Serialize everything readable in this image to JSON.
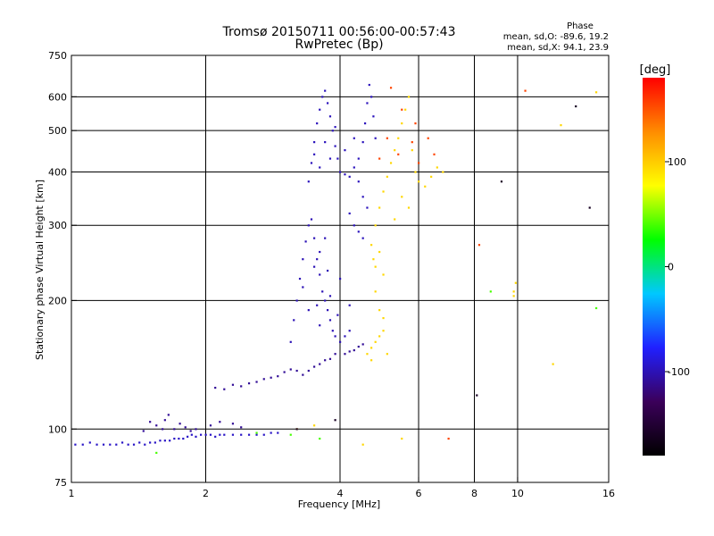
{
  "chart_data": {
    "type": "scatter",
    "title": "Tromsø 20150711 00:56:00-00:57:43",
    "subtitle": "RwPretec (Bp)",
    "xlabel": "Frequency [MHz]",
    "ylabel": "Stationary phase Virtual Height [km]",
    "x_scale": "log",
    "y_scale": "log",
    "xlim": [
      1,
      16
    ],
    "ylim": [
      75,
      750
    ],
    "x_ticks": [
      1,
      2,
      4,
      6,
      8,
      10,
      16
    ],
    "y_ticks": [
      75,
      100,
      200,
      300,
      400,
      500,
      600,
      750
    ],
    "grid": true,
    "stats": {
      "heading": "Phase",
      "line_o": "mean, sd,O: -89.6, 19.2",
      "line_x": "mean, sd,X:  94.1, 23.9"
    },
    "colorbar": {
      "label": "[deg]",
      "range": [
        -180,
        180
      ],
      "ticks": [
        100,
        0,
        -100
      ],
      "colors": [
        "#000000",
        "#3b005a",
        "#2020ff",
        "#00c8ff",
        "#00ff00",
        "#ffff00",
        "#ff8c00",
        "#ff0000"
      ]
    },
    "series": [
      {
        "phase": -95,
        "points": [
          [
            1.02,
            92
          ],
          [
            1.06,
            92
          ],
          [
            1.1,
            93
          ],
          [
            1.14,
            92
          ],
          [
            1.18,
            92
          ],
          [
            1.22,
            92
          ],
          [
            1.26,
            92
          ],
          [
            1.3,
            93
          ],
          [
            1.34,
            92
          ],
          [
            1.38,
            92
          ],
          [
            1.42,
            93
          ],
          [
            1.46,
            92
          ],
          [
            1.5,
            93
          ],
          [
            1.54,
            93
          ],
          [
            1.58,
            94
          ],
          [
            1.62,
            94
          ],
          [
            1.66,
            94
          ],
          [
            1.7,
            95
          ],
          [
            1.74,
            95
          ],
          [
            1.78,
            95
          ],
          [
            1.82,
            96
          ],
          [
            1.86,
            97
          ],
          [
            1.9,
            96
          ],
          [
            1.95,
            97
          ],
          [
            2.0,
            97
          ],
          [
            2.05,
            97
          ],
          [
            2.1,
            96
          ],
          [
            2.15,
            97
          ],
          [
            2.2,
            97
          ],
          [
            2.3,
            97
          ],
          [
            2.4,
            97
          ],
          [
            2.5,
            97
          ],
          [
            2.6,
            97
          ],
          [
            2.7,
            97
          ],
          [
            2.8,
            98
          ],
          [
            2.9,
            98
          ]
        ]
      },
      {
        "phase": -110,
        "points": [
          [
            1.45,
            99
          ],
          [
            1.5,
            104
          ],
          [
            1.55,
            102
          ],
          [
            1.6,
            100
          ],
          [
            1.62,
            105
          ],
          [
            1.65,
            108
          ],
          [
            1.7,
            100
          ],
          [
            1.75,
            103
          ],
          [
            1.8,
            101
          ],
          [
            1.85,
            99
          ],
          [
            1.9,
            100
          ],
          [
            2.05,
            102
          ],
          [
            2.15,
            104
          ],
          [
            2.3,
            103
          ],
          [
            2.4,
            101
          ],
          [
            2.1,
            125
          ],
          [
            2.2,
            124
          ],
          [
            2.3,
            127
          ],
          [
            2.4,
            126
          ],
          [
            2.5,
            128
          ],
          [
            2.6,
            129
          ],
          [
            2.7,
            131
          ],
          [
            2.8,
            132
          ],
          [
            2.9,
            133
          ],
          [
            3.0,
            136
          ],
          [
            3.1,
            138
          ],
          [
            3.2,
            137
          ],
          [
            3.3,
            134
          ],
          [
            3.4,
            137
          ],
          [
            3.5,
            140
          ],
          [
            3.6,
            142
          ],
          [
            3.7,
            145
          ],
          [
            3.8,
            146
          ],
          [
            3.9,
            150
          ],
          [
            4.1,
            150
          ],
          [
            4.2,
            152
          ],
          [
            4.3,
            153
          ],
          [
            4.4,
            156
          ],
          [
            4.5,
            158
          ]
        ]
      },
      {
        "phase": -100,
        "points": [
          [
            3.1,
            160
          ],
          [
            3.15,
            180
          ],
          [
            3.2,
            200
          ],
          [
            3.25,
            225
          ],
          [
            3.3,
            250
          ],
          [
            3.35,
            275
          ],
          [
            3.4,
            300
          ],
          [
            3.45,
            310
          ],
          [
            3.5,
            280
          ],
          [
            3.55,
            250
          ],
          [
            3.6,
            230
          ],
          [
            3.65,
            210
          ],
          [
            3.7,
            200
          ],
          [
            3.75,
            190
          ],
          [
            3.8,
            180
          ],
          [
            3.85,
            170
          ],
          [
            3.9,
            165
          ],
          [
            4.0,
            160
          ],
          [
            4.1,
            165
          ],
          [
            4.2,
            170
          ],
          [
            3.3,
            215
          ],
          [
            3.5,
            240
          ],
          [
            3.6,
            260
          ],
          [
            3.7,
            280
          ],
          [
            3.4,
            190
          ],
          [
            3.6,
            175
          ],
          [
            3.8,
            205
          ],
          [
            4.0,
            225
          ],
          [
            4.2,
            195
          ],
          [
            3.55,
            195
          ],
          [
            3.75,
            235
          ],
          [
            3.95,
            185
          ]
        ]
      },
      {
        "phase": -98,
        "points": [
          [
            3.4,
            380
          ],
          [
            3.45,
            420
          ],
          [
            3.5,
            470
          ],
          [
            3.55,
            520
          ],
          [
            3.6,
            560
          ],
          [
            3.65,
            600
          ],
          [
            3.7,
            620
          ],
          [
            3.75,
            580
          ],
          [
            3.8,
            540
          ],
          [
            3.85,
            500
          ],
          [
            3.9,
            460
          ],
          [
            3.95,
            430
          ],
          [
            4.0,
            400
          ],
          [
            3.6,
            410
          ],
          [
            3.8,
            430
          ],
          [
            4.1,
            395
          ],
          [
            4.2,
            390
          ],
          [
            4.3,
            410
          ],
          [
            4.4,
            430
          ],
          [
            4.5,
            470
          ],
          [
            4.55,
            520
          ],
          [
            4.6,
            580
          ],
          [
            4.65,
            640
          ],
          [
            4.7,
            600
          ],
          [
            4.75,
            540
          ],
          [
            4.8,
            480
          ],
          [
            4.4,
            380
          ],
          [
            4.5,
            350
          ],
          [
            4.6,
            330
          ],
          [
            4.2,
            320
          ],
          [
            4.3,
            300
          ],
          [
            4.4,
            290
          ],
          [
            4.5,
            280
          ],
          [
            3.5,
            440
          ],
          [
            3.7,
            470
          ],
          [
            3.9,
            510
          ],
          [
            4.1,
            450
          ],
          [
            4.3,
            480
          ]
        ]
      },
      {
        "phase": 95,
        "points": [
          [
            4.7,
            270
          ],
          [
            4.75,
            250
          ],
          [
            4.8,
            240
          ],
          [
            4.9,
            260
          ],
          [
            5.0,
            230
          ],
          [
            4.8,
            300
          ],
          [
            4.9,
            330
          ],
          [
            5.0,
            360
          ],
          [
            5.1,
            390
          ],
          [
            5.2,
            420
          ],
          [
            5.3,
            450
          ],
          [
            5.4,
            480
          ],
          [
            5.5,
            520
          ],
          [
            5.6,
            560
          ],
          [
            5.7,
            600
          ],
          [
            5.8,
            450
          ],
          [
            5.9,
            400
          ],
          [
            6.0,
            380
          ],
          [
            6.2,
            370
          ],
          [
            6.4,
            390
          ],
          [
            6.6,
            410
          ],
          [
            6.8,
            400
          ],
          [
            5.5,
            350
          ],
          [
            5.7,
            330
          ],
          [
            5.3,
            310
          ],
          [
            4.7,
            155
          ],
          [
            4.8,
            160
          ],
          [
            4.9,
            165
          ],
          [
            5.0,
            170
          ],
          [
            5.1,
            150
          ],
          [
            4.6,
            150
          ],
          [
            4.7,
            145
          ],
          [
            4.8,
            210
          ],
          [
            4.9,
            190
          ],
          [
            5.0,
            182
          ],
          [
            4.5,
            92
          ],
          [
            5.5,
            95
          ],
          [
            3.2,
            100
          ],
          [
            3.5,
            102
          ],
          [
            9.8,
            205
          ],
          [
            9.9,
            220
          ],
          [
            9.8,
            210
          ],
          [
            12.0,
            142
          ],
          [
            12.5,
            515
          ],
          [
            15.0,
            615
          ]
        ]
      },
      {
        "phase": 155,
        "points": [
          [
            5.2,
            630
          ],
          [
            5.5,
            560
          ],
          [
            5.8,
            470
          ],
          [
            6.0,
            420
          ],
          [
            6.3,
            480
          ],
          [
            6.5,
            440
          ],
          [
            5.4,
            440
          ],
          [
            5.9,
            520
          ],
          [
            4.9,
            430
          ],
          [
            5.1,
            480
          ],
          [
            7.0,
            95
          ],
          [
            8.2,
            270
          ],
          [
            10.4,
            620
          ]
        ]
      },
      {
        "phase": -160,
        "points": [
          [
            8.1,
            120
          ],
          [
            9.2,
            380
          ],
          [
            13.5,
            570
          ],
          [
            14.5,
            330
          ],
          [
            3.2,
            100
          ],
          [
            3.9,
            105
          ]
        ]
      },
      {
        "phase": 40,
        "points": [
          [
            2.6,
            98
          ],
          [
            3.1,
            97
          ],
          [
            3.6,
            95
          ],
          [
            15.0,
            192
          ],
          [
            8.7,
            210
          ],
          [
            1.55,
            88
          ]
        ]
      }
    ]
  }
}
